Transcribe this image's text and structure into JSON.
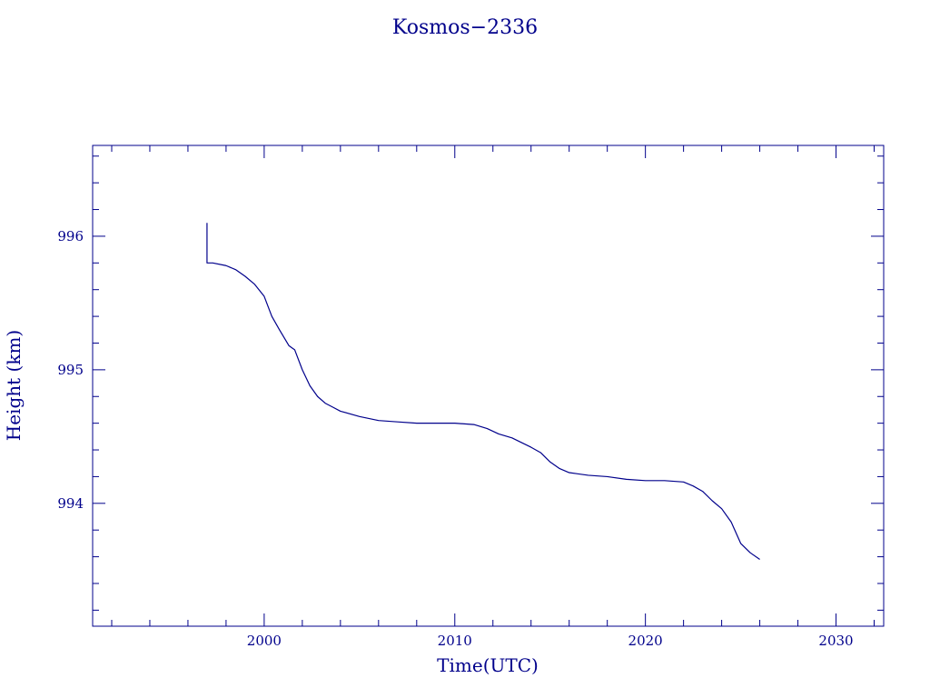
{
  "chart_data": {
    "type": "line",
    "title": "Kosmos−2336",
    "xlabel": "Time(UTC)",
    "ylabel": "Height (km)",
    "xlim": [
      1991,
      2032.5
    ],
    "ylim": [
      993.08,
      996.68
    ],
    "x_major_ticks": [
      2000,
      2010,
      2020,
      2030
    ],
    "x_minor_step": 2,
    "y_major_ticks": [
      994,
      995,
      996
    ],
    "y_minor_step": 0.2,
    "grid": false,
    "colors": {
      "axes": "#00008b",
      "line": "#00008b",
      "background": "#ffffff"
    },
    "series": [
      {
        "points": [
          [
            1997.0,
            996.1
          ],
          [
            1997.0,
            995.8
          ],
          [
            1997.3,
            995.8
          ],
          [
            1998.0,
            995.78
          ],
          [
            1998.5,
            995.75
          ],
          [
            1999.0,
            995.7
          ],
          [
            1999.5,
            995.64
          ],
          [
            2000.0,
            995.55
          ],
          [
            2000.4,
            995.4
          ],
          [
            2000.8,
            995.3
          ],
          [
            2001.3,
            995.18
          ],
          [
            2001.6,
            995.15
          ],
          [
            2002.0,
            995.0
          ],
          [
            2002.4,
            994.88
          ],
          [
            2002.8,
            994.8
          ],
          [
            2003.2,
            994.75
          ],
          [
            2003.6,
            994.72
          ],
          [
            2004.0,
            994.69
          ],
          [
            2005.0,
            994.65
          ],
          [
            2006.0,
            994.62
          ],
          [
            2007.0,
            994.61
          ],
          [
            2008.0,
            994.6
          ],
          [
            2009.0,
            994.6
          ],
          [
            2010.0,
            994.6
          ],
          [
            2011.0,
            994.59
          ],
          [
            2011.7,
            994.56
          ],
          [
            2012.3,
            994.52
          ],
          [
            2013.0,
            994.49
          ],
          [
            2014.0,
            994.42
          ],
          [
            2014.5,
            994.38
          ],
          [
            2015.0,
            994.31
          ],
          [
            2015.5,
            994.26
          ],
          [
            2016.0,
            994.23
          ],
          [
            2017.0,
            994.21
          ],
          [
            2018.0,
            994.2
          ],
          [
            2019.0,
            994.18
          ],
          [
            2020.0,
            994.17
          ],
          [
            2021.0,
            994.17
          ],
          [
            2022.0,
            994.16
          ],
          [
            2022.5,
            994.13
          ],
          [
            2023.0,
            994.09
          ],
          [
            2023.5,
            994.02
          ],
          [
            2024.0,
            993.96
          ],
          [
            2024.5,
            993.86
          ],
          [
            2025.0,
            993.7
          ],
          [
            2025.5,
            993.63
          ],
          [
            2026.0,
            993.58
          ]
        ]
      }
    ]
  }
}
